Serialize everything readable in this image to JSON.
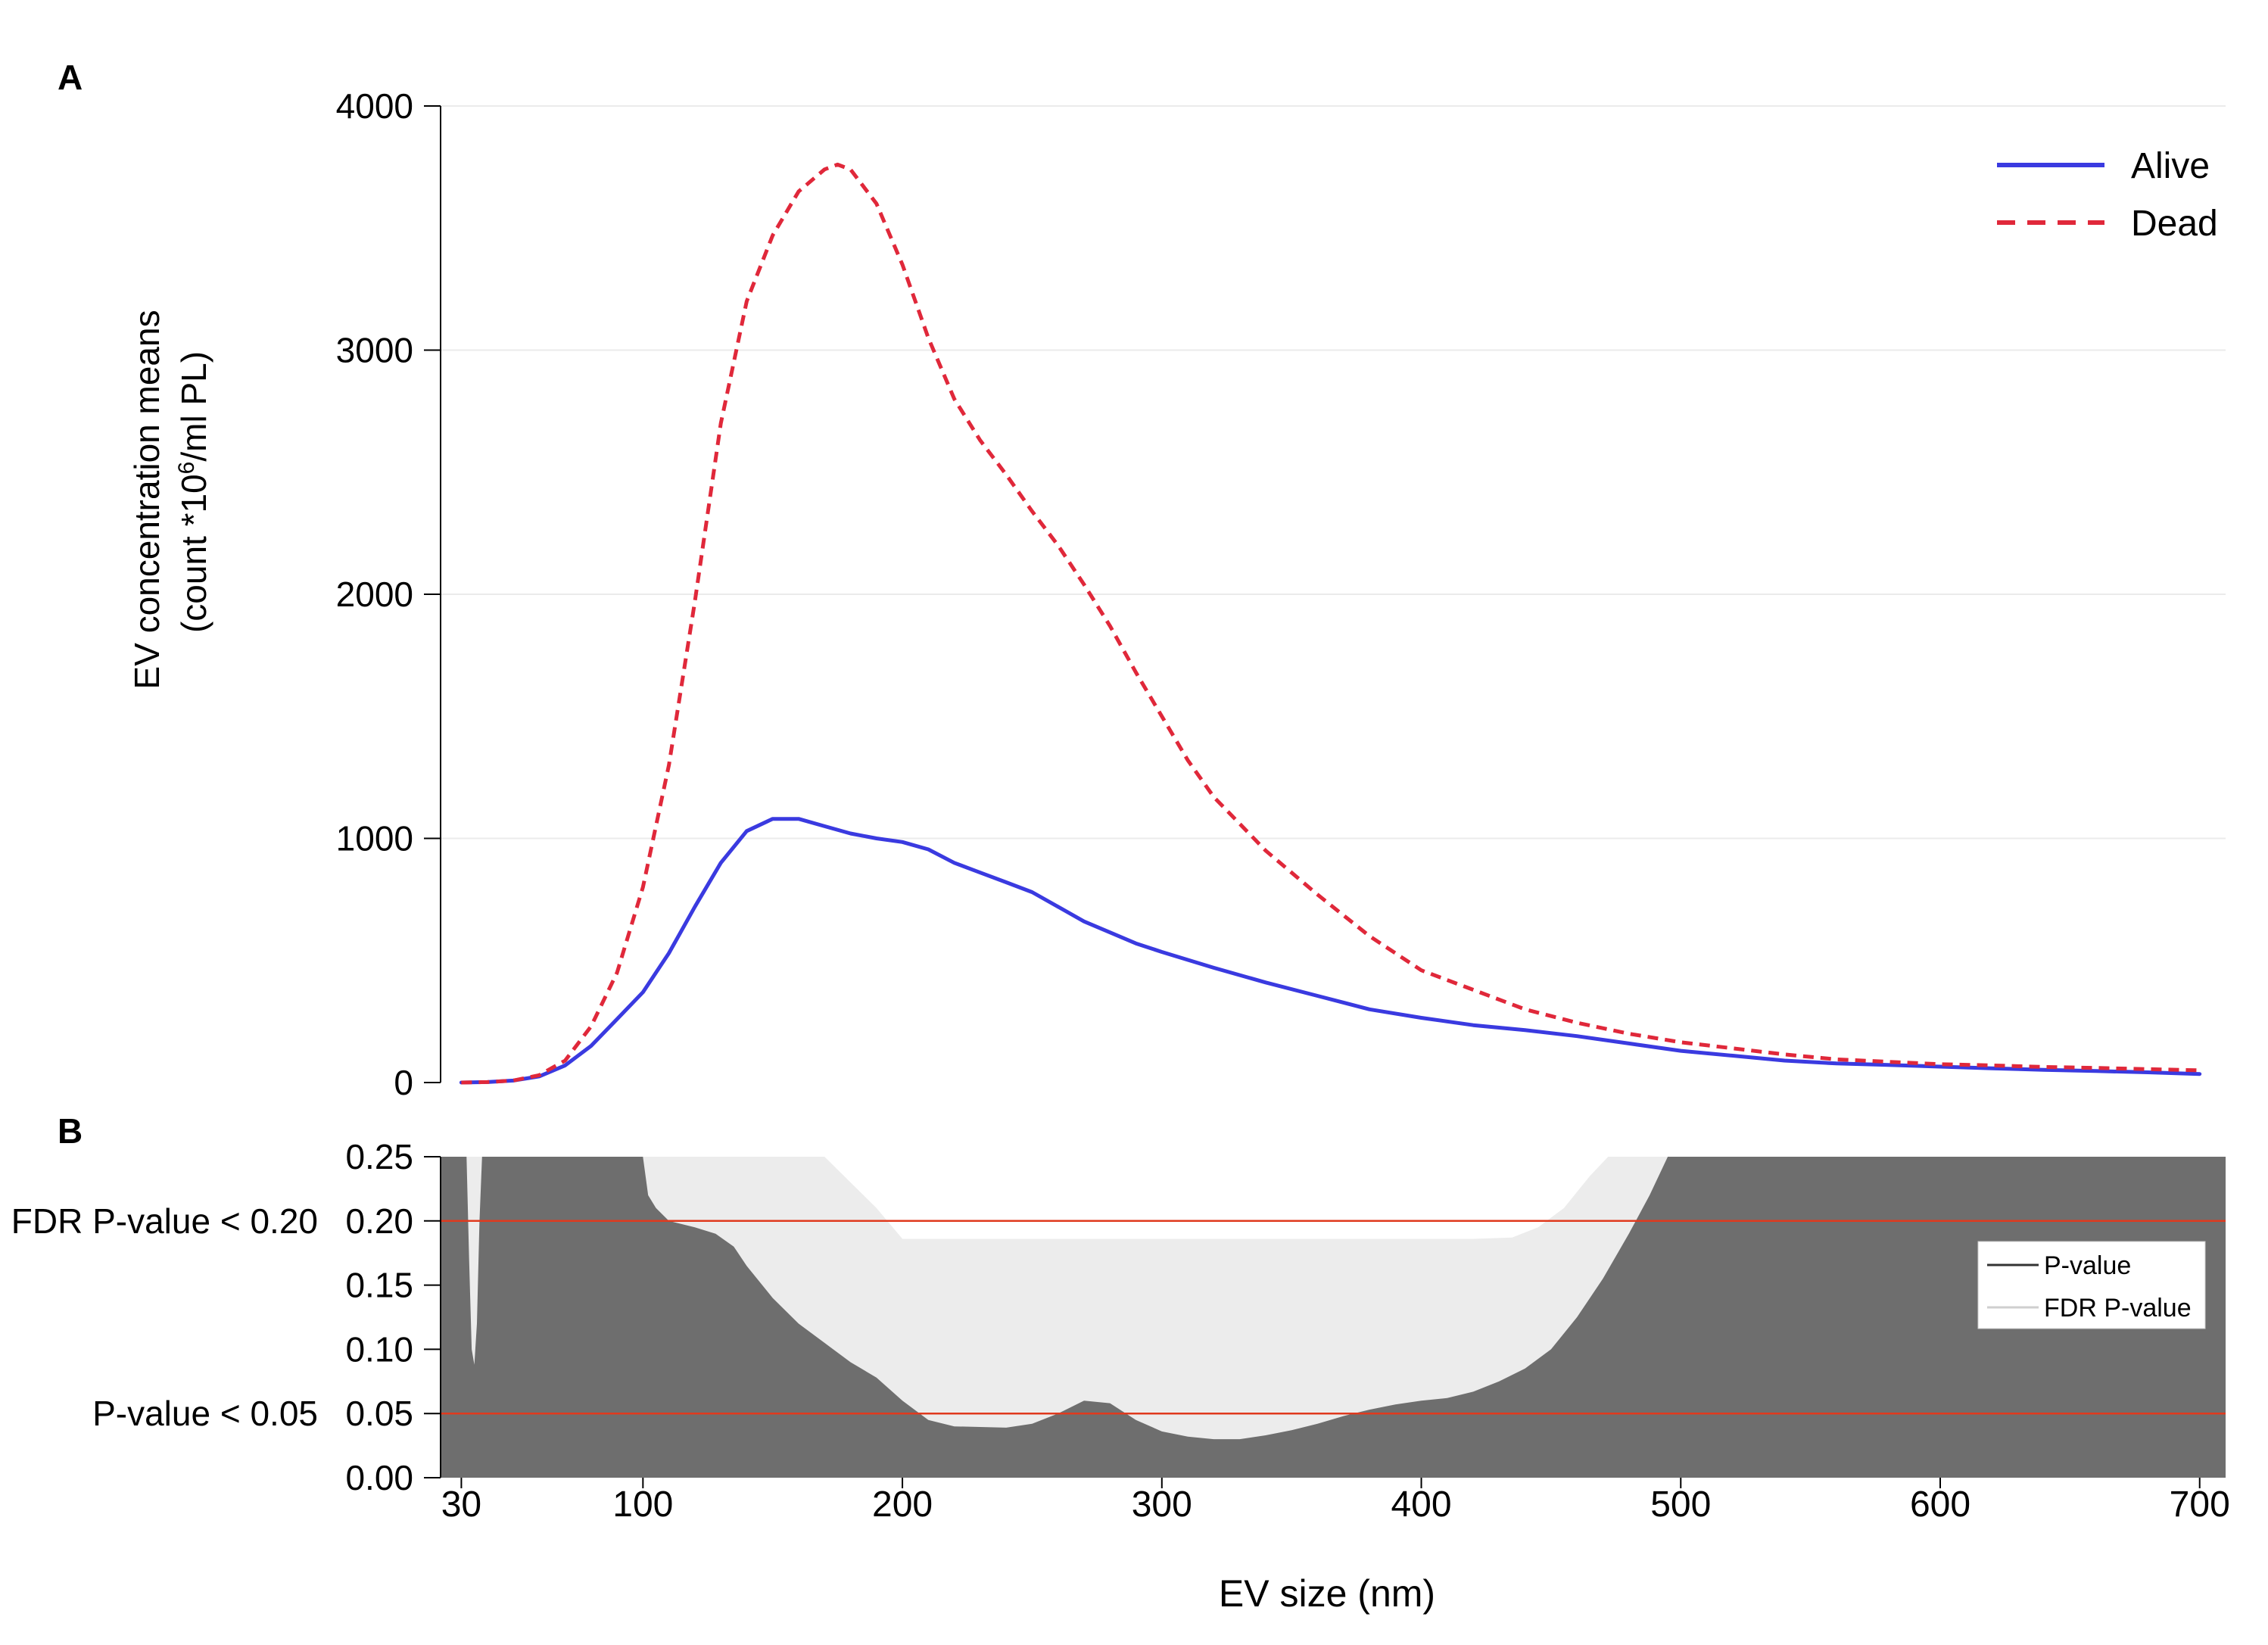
{
  "chart_data": [
    {
      "panel_label": "A",
      "type": "line",
      "ylabel_line1": "EV concentration means",
      "ylabel_line2_prefix": "(count *10",
      "ylabel_line2_sup": "6",
      "ylabel_line2_suffix": "/ml PL)",
      "ylim": [
        0,
        4000
      ],
      "xlim": [
        22,
        710
      ],
      "yticks": [
        0,
        1000,
        2000,
        3000,
        4000
      ],
      "ytick_labels": [
        "0",
        "1000",
        "2000",
        "3000",
        "4000"
      ],
      "grid": true,
      "legend_position": "top-right",
      "series": [
        {
          "name": "Alive",
          "color": "#3a3ae0",
          "style": "solid",
          "points": [
            [
              30,
              0
            ],
            [
              40,
              2
            ],
            [
              50,
              8
            ],
            [
              60,
              25
            ],
            [
              70,
              70
            ],
            [
              80,
              150
            ],
            [
              90,
              260
            ],
            [
              100,
              370
            ],
            [
              110,
              530
            ],
            [
              120,
              720
            ],
            [
              130,
              900
            ],
            [
              140,
              1030
            ],
            [
              150,
              1080
            ],
            [
              160,
              1080
            ],
            [
              170,
              1050
            ],
            [
              180,
              1020
            ],
            [
              190,
              1000
            ],
            [
              200,
              985
            ],
            [
              210,
              955
            ],
            [
              220,
              900
            ],
            [
              230,
              860
            ],
            [
              240,
              820
            ],
            [
              250,
              780
            ],
            [
              260,
              720
            ],
            [
              270,
              660
            ],
            [
              280,
              615
            ],
            [
              290,
              570
            ],
            [
              300,
              535
            ],
            [
              320,
              470
            ],
            [
              340,
              410
            ],
            [
              360,
              355
            ],
            [
              380,
              300
            ],
            [
              400,
              265
            ],
            [
              420,
              235
            ],
            [
              440,
              215
            ],
            [
              460,
              190
            ],
            [
              480,
              160
            ],
            [
              500,
              130
            ],
            [
              520,
              110
            ],
            [
              540,
              90
            ],
            [
              560,
              78
            ],
            [
              580,
              72
            ],
            [
              600,
              65
            ],
            [
              620,
              58
            ],
            [
              640,
              52
            ],
            [
              660,
              47
            ],
            [
              680,
              42
            ],
            [
              700,
              35
            ]
          ]
        },
        {
          "name": "Dead",
          "color": "#e0283a",
          "style": "dashed",
          "points": [
            [
              30,
              0
            ],
            [
              40,
              2
            ],
            [
              50,
              8
            ],
            [
              60,
              30
            ],
            [
              70,
              90
            ],
            [
              80,
              230
            ],
            [
              90,
              450
            ],
            [
              100,
              800
            ],
            [
              110,
              1300
            ],
            [
              120,
              1970
            ],
            [
              130,
              2700
            ],
            [
              140,
              3200
            ],
            [
              150,
              3470
            ],
            [
              160,
              3650
            ],
            [
              170,
              3740
            ],
            [
              175,
              3760
            ],
            [
              180,
              3740
            ],
            [
              190,
              3600
            ],
            [
              200,
              3350
            ],
            [
              210,
              3050
            ],
            [
              220,
              2800
            ],
            [
              230,
              2630
            ],
            [
              240,
              2490
            ],
            [
              250,
              2340
            ],
            [
              260,
              2200
            ],
            [
              270,
              2040
            ],
            [
              280,
              1870
            ],
            [
              290,
              1680
            ],
            [
              300,
              1500
            ],
            [
              310,
              1320
            ],
            [
              320,
              1170
            ],
            [
              340,
              950
            ],
            [
              360,
              770
            ],
            [
              380,
              600
            ],
            [
              400,
              460
            ],
            [
              420,
              380
            ],
            [
              440,
              300
            ],
            [
              460,
              245
            ],
            [
              480,
              200
            ],
            [
              500,
              165
            ],
            [
              520,
              140
            ],
            [
              540,
              115
            ],
            [
              560,
              95
            ],
            [
              580,
              85
            ],
            [
              600,
              75
            ],
            [
              620,
              70
            ],
            [
              640,
              64
            ],
            [
              660,
              60
            ],
            [
              680,
              55
            ],
            [
              700,
              50
            ]
          ]
        }
      ]
    },
    {
      "panel_label": "B",
      "type": "area",
      "ylim": [
        0,
        0.25
      ],
      "xlim": [
        22,
        710
      ],
      "yticks": [
        0,
        0.05,
        0.1,
        0.15,
        0.2,
        0.25
      ],
      "ytick_labels": [
        "0.00",
        "0.05",
        "0.10",
        "0.15",
        "0.20",
        "0.25"
      ],
      "annotations": {
        "fdr_line_label": "FDR P-value < 0.20",
        "p_line_label": "P-value < 0.05",
        "fdr_threshold": 0.2,
        "p_threshold": 0.05
      },
      "threshold_color": "#e03a1e",
      "legend_position": "right",
      "series": [
        {
          "name": "P-value",
          "color": "#6e6e6e",
          "points": [
            [
              22,
              0.25
            ],
            [
              32,
              0.25
            ],
            [
              33,
              0.17
            ],
            [
              34,
              0.1
            ],
            [
              35,
              0.088
            ],
            [
              36,
              0.12
            ],
            [
              37,
              0.2
            ],
            [
              38,
              0.25
            ],
            [
              100,
              0.25
            ],
            [
              102,
              0.22
            ],
            [
              105,
              0.21
            ],
            [
              110,
              0.2
            ],
            [
              120,
              0.195
            ],
            [
              128,
              0.19
            ],
            [
              135,
              0.18
            ],
            [
              140,
              0.165
            ],
            [
              150,
              0.14
            ],
            [
              160,
              0.12
            ],
            [
              170,
              0.105
            ],
            [
              180,
              0.09
            ],
            [
              190,
              0.078
            ],
            [
              200,
              0.06
            ],
            [
              210,
              0.045
            ],
            [
              220,
              0.04
            ],
            [
              240,
              0.039
            ],
            [
              250,
              0.042
            ],
            [
              260,
              0.05
            ],
            [
              270,
              0.06
            ],
            [
              280,
              0.058
            ],
            [
              290,
              0.045
            ],
            [
              300,
              0.036
            ],
            [
              310,
              0.032
            ],
            [
              320,
              0.03
            ],
            [
              330,
              0.03
            ],
            [
              340,
              0.033
            ],
            [
              350,
              0.037
            ],
            [
              360,
              0.042
            ],
            [
              370,
              0.048
            ],
            [
              380,
              0.053
            ],
            [
              390,
              0.057
            ],
            [
              400,
              0.06
            ],
            [
              410,
              0.062
            ],
            [
              420,
              0.067
            ],
            [
              430,
              0.075
            ],
            [
              440,
              0.085
            ],
            [
              450,
              0.1
            ],
            [
              460,
              0.125
            ],
            [
              470,
              0.155
            ],
            [
              480,
              0.19
            ],
            [
              488,
              0.22
            ],
            [
              495,
              0.25
            ],
            [
              710,
              0.25
            ]
          ]
        },
        {
          "name": "FDR P-value",
          "color": "#ececec",
          "points": [
            [
              22,
              0.25
            ],
            [
              170,
              0.25
            ],
            [
              180,
              0.23
            ],
            [
              190,
              0.21
            ],
            [
              200,
              0.186
            ],
            [
              210,
              0.186
            ],
            [
              420,
              0.186
            ],
            [
              435,
              0.187
            ],
            [
              445,
              0.195
            ],
            [
              455,
              0.21
            ],
            [
              465,
              0.235
            ],
            [
              472,
              0.25
            ],
            [
              710,
              0.25
            ]
          ]
        }
      ]
    }
  ],
  "shared_x_axis": {
    "xlabel": "EV size (nm)",
    "xticks": [
      30,
      100,
      200,
      300,
      400,
      500,
      600,
      700
    ],
    "xtick_labels": [
      "30",
      "100",
      "200",
      "300",
      "400",
      "500",
      "600",
      "700"
    ]
  }
}
